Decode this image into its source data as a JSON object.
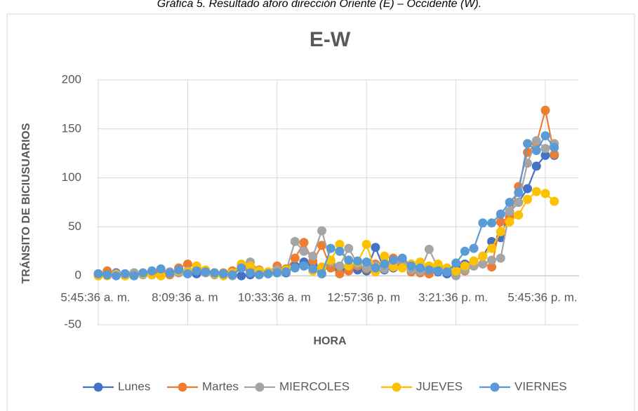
{
  "caption": "Gráfica 5. Resultado aforo dirección Oriente (E) – Occidente (W).",
  "chart_data": {
    "type": "line",
    "title": "E-W",
    "x_label": "HORA",
    "y_label": "TRÁNSITO DE BICIUSUARIOS",
    "categories": [
      "5:45:36 a. m.",
      null,
      null,
      null,
      null,
      null,
      null,
      null,
      null,
      null,
      "8:09:36 a. m",
      null,
      null,
      null,
      null,
      null,
      null,
      null,
      null,
      null,
      "10:33:36 a. m",
      null,
      null,
      null,
      null,
      null,
      null,
      null,
      null,
      null,
      "12:57:36 p. m",
      null,
      null,
      null,
      null,
      null,
      null,
      null,
      null,
      null,
      "3:21:36 p. m.",
      null,
      null,
      null,
      null,
      null,
      null,
      null,
      null,
      null,
      "5:45:36 p. m.",
      null
    ],
    "ylim": [
      -50,
      200
    ],
    "yticks": [
      -50,
      0,
      50,
      100,
      150,
      200
    ],
    "grid": true,
    "legend": "bottom",
    "series": [
      {
        "name": "Lunes",
        "color": "#4472c4",
        "values": [
          2,
          1,
          3,
          2,
          1,
          2,
          1,
          3,
          2,
          4,
          3,
          2,
          5,
          3,
          2,
          1,
          0,
          1,
          2,
          3,
          4,
          3,
          10,
          14,
          12,
          8,
          10,
          6,
          8,
          6,
          5,
          29,
          6,
          8,
          10,
          12,
          8,
          6,
          4,
          2,
          8,
          12,
          15,
          20,
          35,
          39,
          65,
          75,
          89,
          112,
          123,
          123
        ]
      },
      {
        "name": "Martes",
        "color": "#ed7d31",
        "values": [
          1,
          5,
          2,
          0,
          3,
          2,
          4,
          3,
          1,
          8,
          12,
          9,
          4,
          2,
          3,
          5,
          10,
          8,
          6,
          4,
          10,
          7,
          18,
          34,
          15,
          31,
          8,
          2,
          5,
          10,
          7,
          12,
          8,
          18,
          14,
          4,
          3,
          2,
          8,
          5,
          4,
          5,
          10,
          12,
          9,
          55,
          60,
          91,
          126,
          135,
          169,
          124
        ]
      },
      {
        "name": "MIERCOLES",
        "color": "#a5a5a5",
        "values": [
          0,
          1,
          2,
          0,
          3,
          1,
          2,
          0,
          4,
          3,
          5,
          8,
          3,
          1,
          2,
          0,
          8,
          14,
          5,
          3,
          6,
          5,
          35,
          25,
          20,
          46,
          14,
          10,
          28,
          12,
          8,
          10,
          7,
          12,
          16,
          6,
          5,
          27,
          8,
          6,
          0,
          6,
          10,
          12,
          16,
          18,
          66,
          75,
          115,
          138,
          130,
          135
        ]
      },
      {
        "name": "JUEVES",
        "color": "#ffc000",
        "values": [
          0,
          0,
          1,
          0,
          0,
          2,
          1,
          0,
          3,
          5,
          4,
          10,
          6,
          2,
          0,
          3,
          12,
          10,
          5,
          4,
          3,
          6,
          8,
          10,
          5,
          9,
          16,
          32,
          10,
          14,
          32,
          4,
          20,
          9,
          8,
          12,
          14,
          10,
          12,
          8,
          5,
          10,
          15,
          20,
          28,
          45,
          55,
          62,
          78,
          86,
          84,
          76
        ]
      },
      {
        "name": "VIERNES",
        "color": "#5b9bd5",
        "values": [
          2,
          1,
          0,
          2,
          0,
          3,
          5,
          7,
          3,
          6,
          2,
          5,
          4,
          3,
          2,
          1,
          8,
          3,
          1,
          2,
          3,
          4,
          8,
          10,
          7,
          2,
          28,
          25,
          16,
          15,
          14,
          8,
          12,
          16,
          18,
          10,
          8,
          6,
          5,
          4,
          13,
          25,
          28,
          54,
          54,
          63,
          75,
          85,
          135,
          128,
          143,
          131
        ]
      }
    ]
  }
}
